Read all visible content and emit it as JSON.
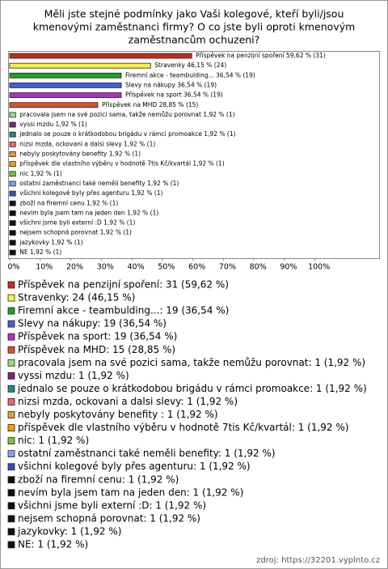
{
  "chart_data": {
    "type": "bar",
    "orientation": "horizontal",
    "title": [
      "Měli jste stejné podmínky jako Vaši kolegové, kteří byli/jsou",
      "kmenovými zaměstnanci firmy? O co jste byli oproti kmenovým",
      "zaměstnancům ochuzeni?"
    ],
    "values": [
      59.62,
      46.15,
      36.54,
      36.54,
      36.54,
      28.85,
      1.92,
      1.92,
      1.92,
      1.92,
      1.92,
      1.92,
      1.92,
      1.92,
      1.92,
      1.92,
      1.92,
      1.92,
      1.92,
      1.92,
      1.92
    ],
    "value_labels": [
      "Příspěvek na penzijní spoření 59,62 % (31)",
      "Stravenky 46,15 % (24)",
      "Firemní akce - teambulding... 36,54 % (19)",
      "Slevy na nákupy 36,54 % (19)",
      "Příspěvek na sport 36,54 % (19)",
      "Příspěvek na MHD 28,85 % (15)",
      "pracovala jsem na své pozici sama, takže nemůžu porovnat 1,92 % (1)",
      "vyssi mzdu 1,92 % (1)",
      "jednalo se pouze o krátkodobou brigádu v rámci promoakce 1,92 % (1)",
      "nizsi mzda, ockovani a dalsi slevy 1,92 % (1)",
      "nebyly poskytovány benefity  1,92 % (1)",
      "příspěvek dle vlastního výběru v hodnotě 7tis Kč/kvartál 1,92 % (1)",
      "nic 1,92 % (1)",
      "ostatní zaměstnanci také neměli benefity 1,92 % (1)",
      "všichni kolegové byly přes agenturu 1,92 % (1)",
      "zboží na firemní cenu 1,92 % (1)",
      "nevím byla jsem tam na jeden den 1,92 % (1)",
      "všichni jsme byli externí :D 1,92 % (1)",
      "nejsem schopná porovnat 1,92 % (1)",
      "jazykovky 1,92 % (1)",
      "NE 1,92 % (1)"
    ],
    "legend_labels": [
      "Příspěvek na penzijní spoření: 31 (59,62 %)",
      "Stravenky: 24 (46,15 %)",
      "Firemní akce - teambulding...: 19 (36,54 %)",
      "Slevy na nákupy: 19 (36,54 %)",
      "Příspěvek na sport: 19 (36,54 %)",
      "Příspěvek na MHD: 15 (28,85 %)",
      "pracovala jsem na své pozici sama, takže nemůžu porovnat: 1 (1,92 %)",
      "vyssi mzdu: 1 (1,92 %)",
      "jednalo se pouze o krátkodobou brigádu v rámci promoakce: 1 (1,92 %)",
      "nizsi mzda, ockovani a dalsi slevy: 1 (1,92 %)",
      "nebyly poskytovány benefity : 1 (1,92 %)",
      "příspěvek dle vlastního výběru v hodnotě 7tis Kč/kvartál: 1 (1,92 %)",
      "nic: 1 (1,92 %)",
      "ostatní zaměstnanci také neměli benefity: 1 (1,92 %)",
      "všichni kolegové byly přes agenturu: 1 (1,92 %)",
      "zboží na firemní cenu: 1 (1,92 %)",
      "nevím byla jsem tam na jeden den: 1 (1,92 %)",
      "všichni jsme byli externí :D: 1 (1,92 %)",
      "nejsem schopná porovnat: 1 (1,92 %)",
      "jazykovky: 1 (1,92 %)",
      "NE: 1 (1,92 %)"
    ],
    "colors": [
      "#c0301c",
      "#f8f040",
      "#20a020",
      "#4060e0",
      "#b030c0",
      "#e05020",
      "#90e080",
      "#802080",
      "#208888",
      "#f06080",
      "#e0a030",
      "#ff9900",
      "#80c040",
      "#80a0f0",
      "#3050b0",
      "#111111",
      "#111111",
      "#111111",
      "#111111",
      "#111111",
      "#111111"
    ],
    "xlim": [
      0,
      121
    ],
    "xticks": [
      {
        "value": 0,
        "label": "0%"
      },
      {
        "value": 10,
        "label": "10%"
      },
      {
        "value": 20,
        "label": "20%"
      },
      {
        "value": 30,
        "label": "30%"
      },
      {
        "value": 40,
        "label": "40%"
      },
      {
        "value": 50,
        "label": "50%"
      },
      {
        "value": 60,
        "label": "60%"
      },
      {
        "value": 70,
        "label": "70%"
      },
      {
        "value": 80,
        "label": "80%"
      },
      {
        "value": 90,
        "label": "90%"
      },
      {
        "value": 100,
        "label": "100%"
      }
    ],
    "source": "zdroj: https://32201.vyplnto.cz"
  }
}
